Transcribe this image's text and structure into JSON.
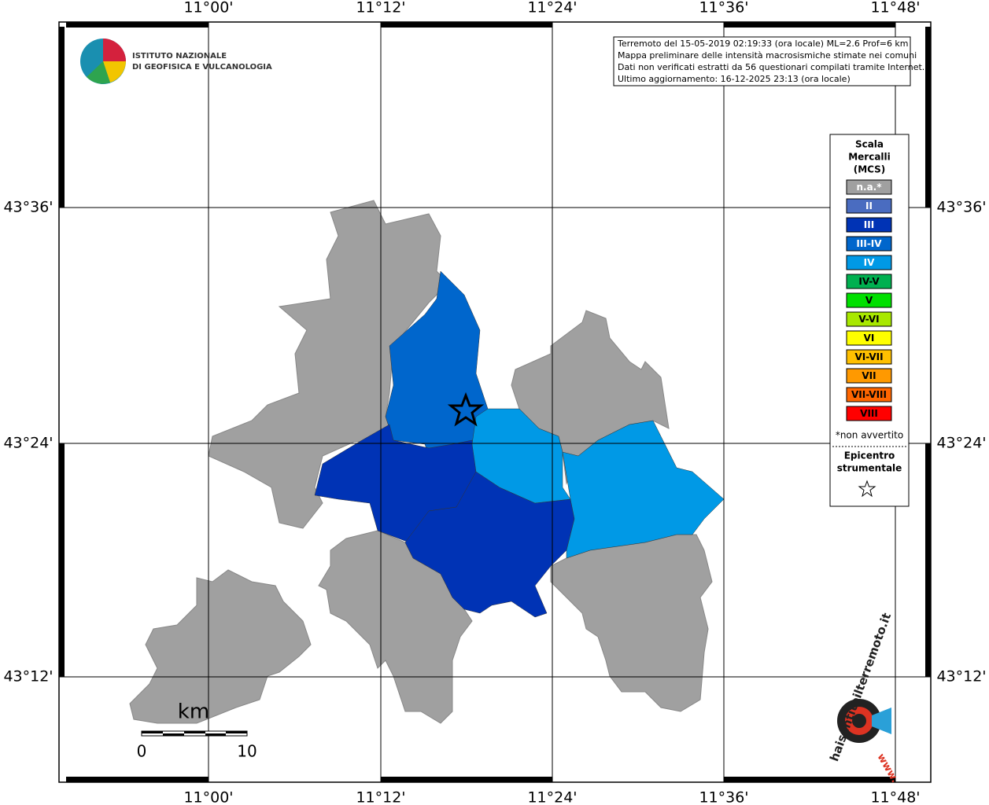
{
  "map": {
    "lon_labels": [
      "11°00'",
      "11°12'",
      "11°24'",
      "11°36'",
      "11°48'"
    ],
    "lat_labels": [
      "43°36'",
      "43°24'",
      "43°12'"
    ],
    "info_lines": [
      "Terremoto del 15-05-2019 02:19:33 (ora locale) ML=2.6 Prof=6 km",
      "Mappa preliminare delle intensità macrosismiche stimate nei comuni",
      "Dati non verificati estratti da 56 questionari compilati tramite Internet.",
      "Ultimo aggiornamento: 16-12-2025 23:13 (ora locale)"
    ],
    "logo_lines": [
      "ISTITUTO NAZIONALE",
      "DI GEOFISICA E VULCANOLOGIA"
    ],
    "legend": {
      "title_lines": [
        "Scala",
        "Mercalli",
        "(MCS)"
      ],
      "items": [
        {
          "label": "n.a.*",
          "color": "#a0a0a0"
        },
        {
          "label": "II",
          "color": "#4a6cc0"
        },
        {
          "label": "III",
          "color": "#0033b5"
        },
        {
          "label": "III-IV",
          "color": "#0066cc"
        },
        {
          "label": "IV",
          "color": "#0099e6"
        },
        {
          "label": "IV-V",
          "color": "#00b050"
        },
        {
          "label": "V",
          "color": "#00e000"
        },
        {
          "label": "V-VI",
          "color": "#a8e800"
        },
        {
          "label": "VI",
          "color": "#ffff00"
        },
        {
          "label": "VI-VII",
          "color": "#ffc000"
        },
        {
          "label": "VII",
          "color": "#ff9900"
        },
        {
          "label": "VII-VIII",
          "color": "#ff6600"
        },
        {
          "label": "VIII",
          "color": "#ff0000"
        }
      ],
      "note": "*non avvertito",
      "epicenter_lines": [
        "Epicentro",
        "strumentale"
      ]
    },
    "scale": {
      "unit": "km",
      "ticks": [
        "0",
        "10"
      ]
    },
    "site_logo": {
      "text": "haisentitoilterremoto.it",
      "prefix": "www."
    }
  }
}
